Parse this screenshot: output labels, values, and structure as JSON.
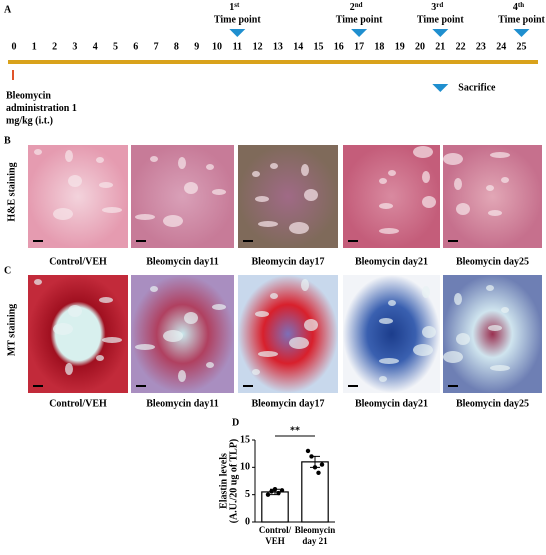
{
  "panel_a": {
    "label": "A",
    "days": [
      0,
      1,
      2,
      3,
      4,
      5,
      6,
      7,
      8,
      9,
      10,
      11,
      12,
      13,
      14,
      15,
      16,
      17,
      18,
      19,
      20,
      21,
      22,
      23,
      24,
      25
    ],
    "time_points": [
      {
        "ordinal": "1",
        "suffix": "st",
        "text": "Time point",
        "day": 11
      },
      {
        "ordinal": "2",
        "suffix": "nd",
        "text": "Time point",
        "day": 17
      },
      {
        "ordinal": "3",
        "suffix": "rd",
        "text": "Time point",
        "day": 21
      },
      {
        "ordinal": "4",
        "suffix": "th",
        "text": "Time point",
        "day": 25
      }
    ],
    "sacrifice": {
      "text": "Sacrifice",
      "day": 21
    },
    "administration": [
      "Bleomycin",
      "administration 1",
      "mg/kg (i.t.)"
    ]
  },
  "panel_b": {
    "label": "B",
    "stain": "H&E staining",
    "captions": [
      "Control/VEH",
      "Bleomycin day11",
      "Bleomycin day17",
      "Bleomycin day21",
      "Bleomycin day25"
    ]
  },
  "panel_c": {
    "label": "C",
    "stain": "MT staining",
    "captions": [
      "Control/VEH",
      "Bleomycin day11",
      "Bleomycin day17",
      "Bleomycin day21",
      "Bleomycin day25"
    ]
  },
  "chart_data": {
    "type": "bar",
    "panel_label": "D",
    "ylabel": [
      "Elastin levels",
      "(A.U./20 ug of TLP)"
    ],
    "categories": [
      "Control/ VEH",
      "Bleomycin day 21"
    ],
    "values": [
      5.5,
      11
    ],
    "errors": [
      0.5,
      1.0
    ],
    "points": [
      [
        5.0,
        5.6,
        6.0,
        5.3,
        5.8
      ],
      [
        13.0,
        12.0,
        10.0,
        9.0,
        10.5
      ]
    ],
    "color": "#ffffff",
    "ylim": [
      0,
      15
    ],
    "yticks": [
      0,
      5,
      10,
      15
    ],
    "annotation": "**"
  }
}
